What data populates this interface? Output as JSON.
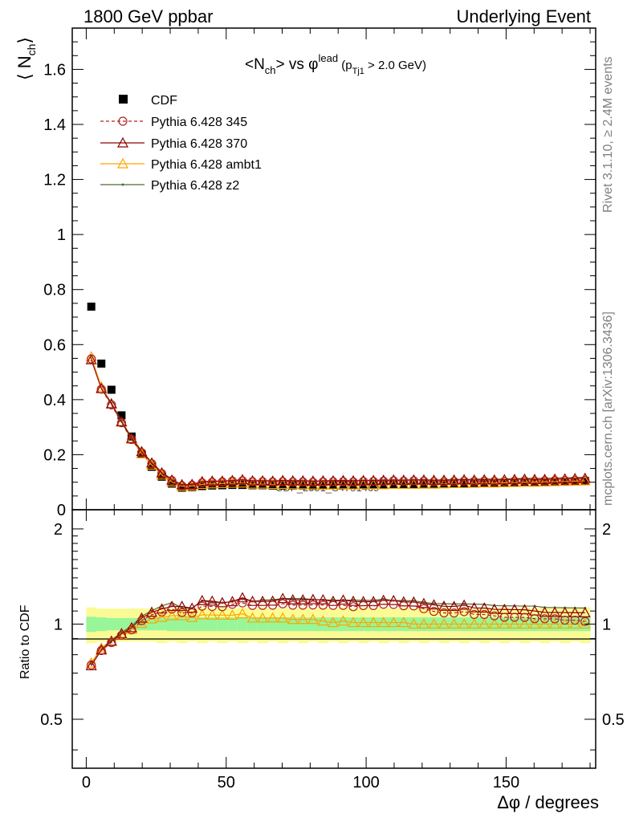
{
  "header": {
    "left": "1800 GeV ppbar",
    "right": "Underlying Event"
  },
  "side_labels": {
    "rivet": "Rivet 3.1.10, ≥ 2.4M events",
    "mcplots": "mcplots.cern.ch [arXiv:1306.3436]"
  },
  "watermark": "CDF_2001_S4751469",
  "chart_data": [
    {
      "type": "line",
      "title": "<N_ch> vs φ^lead (p_Tj1 > 2.0 GeV)",
      "ylabel": "⟨ N_ch ⟩",
      "xlabel": "",
      "xlim": [
        -5,
        182
      ],
      "ylim": [
        0,
        1.75
      ],
      "yticks": [
        "0",
        "0.2",
        "0.4",
        "0.6",
        "0.8",
        "1",
        "1.2",
        "1.4",
        "1.6"
      ],
      "legend_position": "top-left",
      "x": [
        1.8,
        5.4,
        9.0,
        12.6,
        16.2,
        19.8,
        23.4,
        27.0,
        30.6,
        34.2,
        37.8,
        41.4,
        45.0,
        48.6,
        52.2,
        55.8,
        59.4,
        63.0,
        66.6,
        70.2,
        73.8,
        77.4,
        81.0,
        84.6,
        88.2,
        91.8,
        95.4,
        99.0,
        102.6,
        106.2,
        109.8,
        113.4,
        117.0,
        120.6,
        124.2,
        127.8,
        131.4,
        135.0,
        138.6,
        142.2,
        145.8,
        149.4,
        153.0,
        156.6,
        160.2,
        163.8,
        167.4,
        171.0,
        174.6,
        178.2
      ],
      "series": [
        {
          "name": "CDF",
          "color": "#000000",
          "marker": "square",
          "values": [
            0.738,
            0.531,
            0.436,
            0.343,
            0.266,
            0.202,
            0.156,
            0.12,
            0.095,
            0.08,
            0.082,
            0.086,
            0.088,
            0.089,
            0.09,
            0.09,
            0.089,
            0.089,
            0.088,
            0.088,
            0.088,
            0.088,
            0.087,
            0.088,
            0.089,
            0.089,
            0.089,
            0.09,
            0.09,
            0.09,
            0.091,
            0.091,
            0.092,
            0.093,
            0.093,
            0.094,
            0.095,
            0.095,
            0.096,
            0.097,
            0.097,
            0.098,
            0.099,
            0.1,
            0.1,
            0.101,
            0.102,
            0.103,
            0.104,
            0.105
          ],
          "errors": [
            0.11,
            0.075,
            0.06,
            0.05,
            0.04,
            0.03,
            0.023,
            0.018,
            0.014,
            0.012,
            0.012,
            0.013,
            0.013,
            0.013,
            0.013,
            0.013,
            0.013,
            0.013,
            0.013,
            0.013,
            0.013,
            0.013,
            0.013,
            0.013,
            0.013,
            0.013,
            0.013,
            0.013,
            0.013,
            0.013,
            0.013,
            0.013,
            0.013,
            0.013,
            0.013,
            0.013,
            0.013,
            0.013,
            0.013,
            0.013,
            0.013,
            0.013,
            0.013,
            0.013,
            0.013,
            0.013,
            0.013,
            0.013,
            0.013,
            0.013
          ]
        },
        {
          "name": "Pythia 6.428 345",
          "color": "#b22222",
          "marker": "circle-open",
          "dashed": true,
          "values": [
            0.548,
            0.438,
            0.381,
            0.316,
            0.255,
            0.207,
            0.167,
            0.131,
            0.106,
            0.087,
            0.089,
            0.098,
            0.1,
            0.101,
            0.104,
            0.105,
            0.102,
            0.102,
            0.101,
            0.102,
            0.101,
            0.101,
            0.1,
            0.101,
            0.102,
            0.102,
            0.101,
            0.103,
            0.103,
            0.104,
            0.105,
            0.104,
            0.105,
            0.104,
            0.102,
            0.102,
            0.103,
            0.104,
            0.103,
            0.104,
            0.103,
            0.103,
            0.104,
            0.105,
            0.104,
            0.105,
            0.106,
            0.106,
            0.107,
            0.107
          ]
        },
        {
          "name": "Pythia 6.428 370",
          "color": "#8b0000",
          "marker": "triangle-open",
          "dashed": false,
          "values": [
            0.545,
            0.44,
            0.385,
            0.32,
            0.259,
            0.211,
            0.17,
            0.134,
            0.108,
            0.091,
            0.092,
            0.102,
            0.104,
            0.104,
            0.106,
            0.109,
            0.105,
            0.105,
            0.104,
            0.106,
            0.105,
            0.105,
            0.104,
            0.105,
            0.105,
            0.106,
            0.105,
            0.106,
            0.106,
            0.107,
            0.108,
            0.107,
            0.108,
            0.108,
            0.107,
            0.107,
            0.108,
            0.109,
            0.108,
            0.109,
            0.108,
            0.109,
            0.11,
            0.111,
            0.11,
            0.11,
            0.111,
            0.112,
            0.113,
            0.114
          ]
        },
        {
          "name": "Pythia 6.428 ambt1",
          "color": "#ffa500",
          "marker": "triangle-open",
          "dashed": false,
          "values": [
            0.556,
            0.446,
            0.384,
            0.318,
            0.256,
            0.203,
            0.162,
            0.126,
            0.101,
            0.085,
            0.086,
            0.092,
            0.094,
            0.095,
            0.096,
            0.097,
            0.093,
            0.093,
            0.092,
            0.092,
            0.091,
            0.091,
            0.09,
            0.09,
            0.09,
            0.091,
            0.09,
            0.091,
            0.091,
            0.091,
            0.092,
            0.092,
            0.092,
            0.093,
            0.093,
            0.094,
            0.095,
            0.095,
            0.096,
            0.097,
            0.097,
            0.098,
            0.099,
            0.1,
            0.1,
            0.101,
            0.102,
            0.103,
            0.104,
            0.105
          ]
        },
        {
          "name": "Pythia 6.428 z2",
          "color": "#556b2f",
          "marker": "dot",
          "dashed": false,
          "values": [
            0.552,
            0.445,
            0.388,
            0.323,
            0.262,
            0.214,
            0.172,
            0.137,
            0.111,
            0.09,
            0.092,
            0.102,
            0.103,
            0.104,
            0.106,
            0.108,
            0.105,
            0.106,
            0.105,
            0.106,
            0.106,
            0.106,
            0.104,
            0.105,
            0.106,
            0.106,
            0.106,
            0.107,
            0.107,
            0.108,
            0.108,
            0.108,
            0.109,
            0.109,
            0.108,
            0.109,
            0.11,
            0.11,
            0.111,
            0.112,
            0.111,
            0.112,
            0.113,
            0.114,
            0.114,
            0.114,
            0.115,
            0.116,
            0.117,
            0.118
          ]
        }
      ]
    },
    {
      "type": "line",
      "title": "",
      "ylabel": "Ratio to CDF",
      "xlabel": "Δφ / degrees",
      "xlim": [
        -5,
        182
      ],
      "ylim": [
        0.35,
        2.3
      ],
      "y_scale": "log",
      "xticks": [
        "0",
        "50",
        "100",
        "150"
      ],
      "yticks": [
        "0.5",
        "1",
        "2"
      ],
      "reference": 1,
      "bands": {
        "inner_color": "#98f698",
        "outer_color": "#fbfb96",
        "inner": [
          0.055,
          0.05,
          0.045,
          0.045,
          0.045,
          0.045,
          0.045,
          0.045,
          0.05,
          0.05,
          0.05,
          0.05,
          0.05,
          0.05,
          0.05,
          0.05,
          0.05,
          0.05,
          0.05,
          0.05,
          0.05,
          0.05,
          0.05,
          0.05,
          0.05,
          0.05,
          0.05,
          0.05,
          0.05,
          0.05,
          0.05,
          0.05,
          0.05,
          0.05,
          0.05,
          0.05,
          0.05,
          0.05,
          0.05,
          0.05,
          0.05,
          0.05,
          0.05,
          0.05,
          0.05,
          0.05,
          0.05,
          0.05,
          0.05,
          0.05
        ],
        "outer": [
          0.13,
          0.12,
          0.12,
          0.12,
          0.12,
          0.12,
          0.12,
          0.13,
          0.12,
          0.13,
          0.12,
          0.13,
          0.12,
          0.13,
          0.12,
          0.13,
          0.12,
          0.13,
          0.12,
          0.13,
          0.12,
          0.13,
          0.12,
          0.13,
          0.12,
          0.13,
          0.12,
          0.13,
          0.12,
          0.13,
          0.12,
          0.13,
          0.12,
          0.13,
          0.12,
          0.13,
          0.12,
          0.13,
          0.12,
          0.13,
          0.12,
          0.13,
          0.12,
          0.13,
          0.12,
          0.13,
          0.12,
          0.13,
          0.12,
          0.13
        ]
      }
    }
  ]
}
